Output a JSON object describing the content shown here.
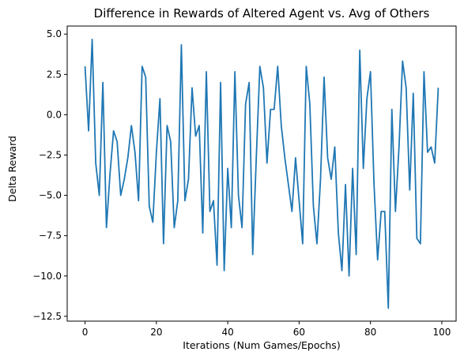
{
  "chart_data": {
    "type": "line",
    "title": "Difference in Rewards of Altered Agent vs. Avg of Others",
    "xlabel": "Iterations (Num Games/Epochs)",
    "ylabel": "Delta Reward",
    "xlim": [
      -5,
      104
    ],
    "ylim": [
      -12.8,
      5.5
    ],
    "xticks": [
      0,
      20,
      40,
      60,
      80,
      100
    ],
    "yticks": [
      5.0,
      2.5,
      0.0,
      -2.5,
      -5.0,
      -7.5,
      -10.0,
      -12.5
    ],
    "ytick_labels": [
      "5.0",
      "2.5",
      "0.0",
      "−2.5",
      "−5.0",
      "−7.5",
      "−10.0",
      "−12.5"
    ],
    "grid": false,
    "line_color": "#1f77b4",
    "series": [
      {
        "x": [
          0,
          1,
          2,
          3,
          4,
          5,
          6,
          7,
          8,
          9,
          10,
          11,
          12,
          13,
          14,
          15,
          16,
          17,
          18,
          19,
          20,
          21,
          22,
          23,
          24,
          25,
          26,
          27,
          28,
          29,
          30,
          31,
          32,
          33,
          34,
          35,
          36,
          37,
          38,
          39,
          40,
          41,
          42,
          43,
          44,
          45,
          46,
          47,
          48,
          49,
          50,
          51,
          52,
          53,
          54,
          55,
          56,
          57,
          58,
          59,
          60,
          61,
          62,
          63,
          64,
          65,
          66,
          67,
          68,
          69,
          70,
          71,
          72,
          73,
          74,
          75,
          76,
          77,
          78,
          79,
          80,
          81,
          82,
          83,
          84,
          85,
          86,
          87,
          88,
          89,
          90,
          91,
          92,
          93,
          94,
          95,
          96,
          97,
          98,
          99
        ],
        "values": [
          3.0,
          -1.0,
          4.67,
          -3.0,
          -5.0,
          2.0,
          -7.0,
          -3.67,
          -1.0,
          -1.67,
          -5.0,
          -4.0,
          -2.67,
          -0.67,
          -2.33,
          -5.33,
          3.0,
          2.33,
          -5.67,
          -6.67,
          -2.33,
          1.0,
          -8.0,
          -0.67,
          -1.67,
          -7.0,
          -5.33,
          4.33,
          -5.33,
          -4.0,
          1.67,
          -1.33,
          -0.67,
          -7.33,
          2.67,
          -6.0,
          -5.33,
          -9.33,
          2.0,
          -9.67,
          -3.33,
          -7.0,
          2.67,
          -5.0,
          -7.0,
          0.67,
          2.0,
          -8.67,
          -2.67,
          3.0,
          1.67,
          -3.0,
          0.33,
          0.33,
          3.0,
          -0.67,
          -2.67,
          -4.33,
          -6.0,
          -2.67,
          -5.33,
          -8.0,
          3.0,
          0.67,
          -5.67,
          -8.0,
          -4.0,
          2.33,
          -2.67,
          -4.0,
          -2.0,
          -7.33,
          -9.67,
          -4.33,
          -10.0,
          -3.33,
          -8.67,
          4.0,
          -3.33,
          1.0,
          2.67,
          -4.33,
          -9.0,
          -6.0,
          -6.0,
          -12.0,
          0.33,
          -6.0,
          -2.0,
          3.33,
          1.67,
          -4.67,
          1.33,
          -7.67,
          -8.0,
          2.67,
          -2.33,
          -2.0,
          -3.0,
          1.67
        ]
      }
    ]
  }
}
